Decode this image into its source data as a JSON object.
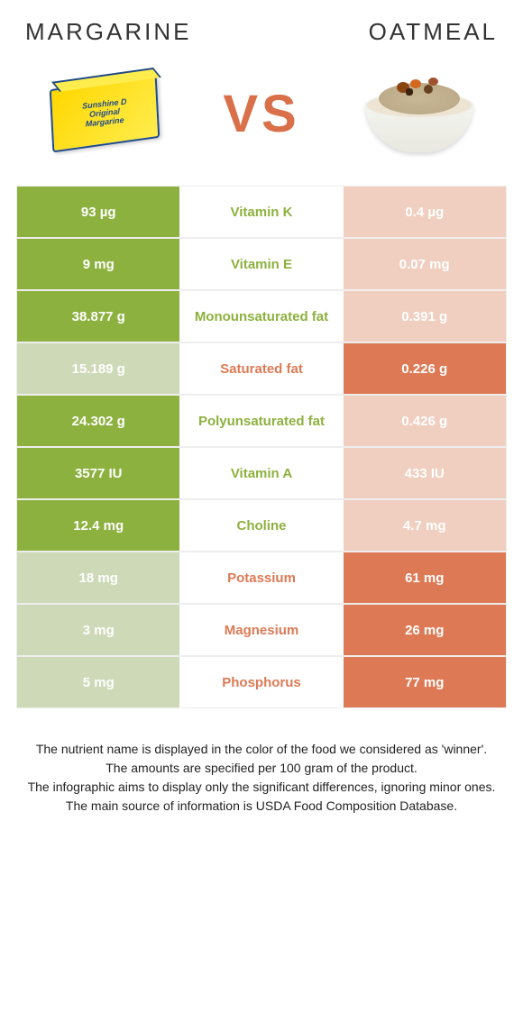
{
  "header": {
    "left_title": "Margarine",
    "right_title": "Oatmeal",
    "vs": "VS"
  },
  "colors": {
    "green": "#8db13f",
    "green_lose": "#ced9b8",
    "orange": "#dd7a55",
    "orange_lose": "#f0cfc0"
  },
  "rows": [
    {
      "left": "93 µg",
      "label": "Vitamin K",
      "right": "0.4 µg",
      "winner": "left"
    },
    {
      "left": "9 mg",
      "label": "Vitamin E",
      "right": "0.07 mg",
      "winner": "left"
    },
    {
      "left": "38.877 g",
      "label": "Monounsaturated fat",
      "right": "0.391 g",
      "winner": "left"
    },
    {
      "left": "15.189 g",
      "label": "Saturated fat",
      "right": "0.226 g",
      "winner": "right"
    },
    {
      "left": "24.302 g",
      "label": "Polyunsaturated fat",
      "right": "0.426 g",
      "winner": "left"
    },
    {
      "left": "3577 IU",
      "label": "Vitamin A",
      "right": "433 IU",
      "winner": "left"
    },
    {
      "left": "12.4 mg",
      "label": "Choline",
      "right": "4.7 mg",
      "winner": "left"
    },
    {
      "left": "18 mg",
      "label": "Potassium",
      "right": "61 mg",
      "winner": "right"
    },
    {
      "left": "3 mg",
      "label": "Magnesium",
      "right": "26 mg",
      "winner": "right"
    },
    {
      "left": "5 mg",
      "label": "Phosphorus",
      "right": "77 mg",
      "winner": "right"
    }
  ],
  "footer": {
    "line1": "The nutrient name is displayed in the color of the food we considered as 'winner'.",
    "line2": "The amounts are specified per 100 gram of the product.",
    "line3": "The infographic aims to display only the significant differences, ignoring minor ones.",
    "line4": "The main source of information is USDA Food Composition Database."
  }
}
